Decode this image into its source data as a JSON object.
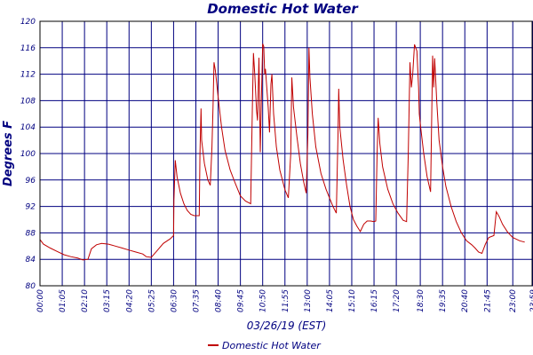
{
  "chart_data": {
    "type": "line",
    "title": "Domestic Hot Water",
    "xlabel": "03/26/19 (EST)",
    "ylabel": "Degrees F",
    "ylim": [
      80,
      120
    ],
    "yticks": [
      80,
      84,
      88,
      92,
      96,
      100,
      104,
      108,
      112,
      116,
      120
    ],
    "xlim": [
      "00:00",
      "23:59"
    ],
    "xticks": [
      "00:00",
      "01:05",
      "02:10",
      "03:15",
      "04:20",
      "05:25",
      "06:30",
      "07:35",
      "08:40",
      "09:45",
      "10:50",
      "11:55",
      "13:00",
      "14:05",
      "15:10",
      "16:15",
      "17:20",
      "18:30",
      "19:35",
      "20:40",
      "21:45",
      "23:00",
      "23:59"
    ],
    "grid": true,
    "legend": "bottom-center",
    "series": [
      {
        "name": "Domestic Hot Water",
        "color": "#c00000",
        "points": [
          [
            "00:00",
            87.0
          ],
          [
            "00:10",
            86.3
          ],
          [
            "00:30",
            85.7
          ],
          [
            "00:50",
            85.2
          ],
          [
            "01:10",
            84.7
          ],
          [
            "01:30",
            84.4
          ],
          [
            "01:50",
            84.2
          ],
          [
            "02:05",
            83.9
          ],
          [
            "02:20",
            84.0
          ],
          [
            "02:30",
            85.6
          ],
          [
            "02:45",
            86.2
          ],
          [
            "03:00",
            86.4
          ],
          [
            "03:20",
            86.3
          ],
          [
            "03:40",
            86.0
          ],
          [
            "04:00",
            85.7
          ],
          [
            "04:20",
            85.4
          ],
          [
            "04:40",
            85.1
          ],
          [
            "05:00",
            84.8
          ],
          [
            "05:10",
            84.4
          ],
          [
            "05:25",
            84.3
          ],
          [
            "05:40",
            85.2
          ],
          [
            "06:00",
            86.4
          ],
          [
            "06:20",
            87.1
          ],
          [
            "06:30",
            87.6
          ],
          [
            "06:31",
            93.0
          ],
          [
            "06:35",
            99.0
          ],
          [
            "06:40",
            96.5
          ],
          [
            "06:50",
            94.0
          ],
          [
            "07:00",
            92.4
          ],
          [
            "07:10",
            91.4
          ],
          [
            "07:20",
            90.8
          ],
          [
            "07:30",
            90.6
          ],
          [
            "07:45",
            90.6
          ],
          [
            "07:47",
            100.0
          ],
          [
            "07:50",
            106.8
          ],
          [
            "07:52",
            102.0
          ],
          [
            "08:00",
            98.5
          ],
          [
            "08:10",
            96.0
          ],
          [
            "08:17",
            95.2
          ],
          [
            "08:22",
            101.0
          ],
          [
            "08:25",
            107.0
          ],
          [
            "08:28",
            113.8
          ],
          [
            "08:32",
            112.5
          ],
          [
            "08:40",
            108.5
          ],
          [
            "08:50",
            104.0
          ],
          [
            "09:00",
            100.5
          ],
          [
            "09:15",
            97.5
          ],
          [
            "09:30",
            95.5
          ],
          [
            "09:45",
            93.6
          ],
          [
            "10:00",
            92.8
          ],
          [
            "10:15",
            92.4
          ],
          [
            "10:20",
            107.0
          ],
          [
            "10:23",
            115.2
          ],
          [
            "10:27",
            112.0
          ],
          [
            "10:32",
            106.5
          ],
          [
            "10:35",
            105.0
          ],
          [
            "10:39",
            114.5
          ],
          [
            "10:41",
            108.0
          ],
          [
            "10:43",
            100.2
          ],
          [
            "10:46",
            108.0
          ],
          [
            "10:50",
            116.6
          ],
          [
            "10:53",
            116.2
          ],
          [
            "10:56",
            112.0
          ],
          [
            "10:58",
            112.8
          ],
          [
            "11:02",
            110.0
          ],
          [
            "11:06",
            107.0
          ],
          [
            "11:10",
            103.2
          ],
          [
            "11:14",
            110.5
          ],
          [
            "11:17",
            112.0
          ],
          [
            "11:22",
            106.0
          ],
          [
            "11:30",
            101.0
          ],
          [
            "11:40",
            97.5
          ],
          [
            "11:55",
            94.5
          ],
          [
            "12:05",
            93.3
          ],
          [
            "12:12",
            100.0
          ],
          [
            "12:15",
            111.5
          ],
          [
            "12:20",
            107.0
          ],
          [
            "12:30",
            102.5
          ],
          [
            "12:40",
            98.5
          ],
          [
            "12:50",
            95.6
          ],
          [
            "12:57",
            94.0
          ],
          [
            "13:02",
            103.0
          ],
          [
            "13:05",
            116.0
          ],
          [
            "13:08",
            111.5
          ],
          [
            "13:15",
            106.0
          ],
          [
            "13:25",
            101.0
          ],
          [
            "13:40",
            97.0
          ],
          [
            "13:55",
            94.6
          ],
          [
            "14:05",
            93.3
          ],
          [
            "14:15",
            92.0
          ],
          [
            "14:25",
            91.0
          ],
          [
            "14:30",
            103.0
          ],
          [
            "14:32",
            109.8
          ],
          [
            "14:35",
            104.0
          ],
          [
            "14:45",
            99.0
          ],
          [
            "14:55",
            95.2
          ],
          [
            "15:05",
            92.0
          ],
          [
            "15:15",
            90.0
          ],
          [
            "15:25",
            89.0
          ],
          [
            "15:35",
            88.2
          ],
          [
            "15:45",
            89.3
          ],
          [
            "15:55",
            89.8
          ],
          [
            "16:05",
            89.8
          ],
          [
            "16:15",
            89.7
          ],
          [
            "16:20",
            89.8
          ],
          [
            "16:24",
            100.0
          ],
          [
            "16:27",
            105.4
          ],
          [
            "16:32",
            101.5
          ],
          [
            "16:40",
            98.0
          ],
          [
            "16:55",
            94.6
          ],
          [
            "17:10",
            92.4
          ],
          [
            "17:25",
            91.0
          ],
          [
            "17:40",
            89.9
          ],
          [
            "17:50",
            89.7
          ],
          [
            "17:55",
            100.0
          ],
          [
            "18:00",
            113.8
          ],
          [
            "18:04",
            110.0
          ],
          [
            "18:08",
            112.0
          ],
          [
            "18:13",
            116.5
          ],
          [
            "18:20",
            115.5
          ],
          [
            "18:25",
            110.0
          ],
          [
            "18:27",
            106.0
          ],
          [
            "18:30",
            104.5
          ],
          [
            "18:40",
            100.0
          ],
          [
            "18:50",
            96.5
          ],
          [
            "19:00",
            94.2
          ],
          [
            "19:03",
            104.0
          ],
          [
            "19:06",
            114.8
          ],
          [
            "19:09",
            110.0
          ],
          [
            "19:12",
            114.4
          ],
          [
            "19:18",
            108.0
          ],
          [
            "19:25",
            102.0
          ],
          [
            "19:35",
            98.0
          ],
          [
            "19:45",
            95.0
          ],
          [
            "20:00",
            92.0
          ],
          [
            "20:15",
            89.7
          ],
          [
            "20:30",
            88.0
          ],
          [
            "20:45",
            86.8
          ],
          [
            "21:00",
            86.2
          ],
          [
            "21:10",
            85.7
          ],
          [
            "21:20",
            85.1
          ],
          [
            "21:30",
            84.9
          ],
          [
            "21:40",
            86.3
          ],
          [
            "21:50",
            87.3
          ],
          [
            "22:05",
            87.6
          ],
          [
            "22:12",
            91.2
          ],
          [
            "22:20",
            90.5
          ],
          [
            "22:30",
            89.3
          ],
          [
            "22:45",
            88.1
          ],
          [
            "23:00",
            87.3
          ],
          [
            "23:20",
            86.8
          ],
          [
            "23:35",
            86.6
          ]
        ]
      }
    ]
  }
}
